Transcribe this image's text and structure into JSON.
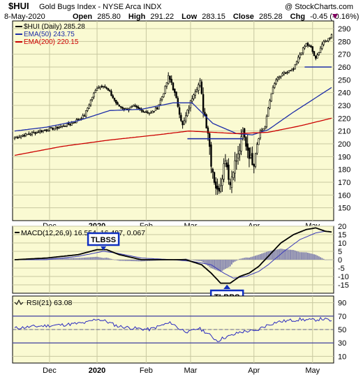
{
  "header": {
    "symbol": "$HUI",
    "name": "Gold Bugs Index - NYSE Arca  INDX",
    "watermark": "@ StockCharts.com",
    "date": "8-May-2020",
    "open_label": "Open",
    "open": "285.80",
    "high_label": "High",
    "high": "291.22",
    "low_label": "Low",
    "low": "283.15",
    "close_label": "Close",
    "close": "285.28",
    "chg_label": "Chg",
    "chg": "-0.45 (-0.16%)"
  },
  "colors": {
    "panel_bg": "#fafad2",
    "grid": "#c8c8a0",
    "price": "#000000",
    "ema50": "#1e2ea8",
    "ema200": "#cc0000",
    "macd": "#000000",
    "signal": "#3a3ab8",
    "histogram": "#8a8ab0",
    "rsi": "#2a2ac0",
    "annotation_box": "#1030c0"
  },
  "chart_data": [
    {
      "type": "candlestick",
      "legend": [
        {
          "label": "$HUI (Daily) 285.28",
          "color": "#000000"
        },
        {
          "label": "EMA(50) 243.75",
          "color": "#1e2ea8"
        },
        {
          "label": "EMA(200) 220.15",
          "color": "#cc0000"
        }
      ],
      "ylim": [
        140,
        296
      ],
      "y_ticks": [
        150,
        160,
        170,
        180,
        190,
        200,
        210,
        220,
        230,
        240,
        250,
        260,
        270,
        280,
        290
      ],
      "x_ticks": [
        "Dec",
        "2020",
        "Feb",
        "Mar",
        "Apr",
        "May"
      ],
      "x_tick_index": [
        22,
        52,
        83,
        111,
        151,
        188
      ],
      "support_lines": [
        {
          "from_index": 109,
          "to_index": 144,
          "value": 204
        },
        {
          "from_index": 183,
          "to_index": 200,
          "value": 260
        }
      ],
      "control_points": [
        [
          0,
          205
        ],
        [
          10,
          208
        ],
        [
          20,
          211
        ],
        [
          28,
          213
        ],
        [
          36,
          216
        ],
        [
          44,
          222
        ],
        [
          48,
          234
        ],
        [
          52,
          244
        ],
        [
          56,
          246
        ],
        [
          60,
          240
        ],
        [
          65,
          230
        ],
        [
          70,
          227
        ],
        [
          75,
          229
        ],
        [
          80,
          226
        ],
        [
          86,
          224
        ],
        [
          90,
          228
        ],
        [
          94,
          240
        ],
        [
          97,
          252
        ],
        [
          99,
          248
        ],
        [
          103,
          230
        ],
        [
          106,
          214
        ],
        [
          109,
          225
        ],
        [
          113,
          240
        ],
        [
          117,
          248
        ],
        [
          119,
          228
        ],
        [
          122,
          210
        ],
        [
          124,
          186
        ],
        [
          126,
          172
        ],
        [
          128,
          162
        ],
        [
          130,
          170
        ],
        [
          133,
          190
        ],
        [
          136,
          168
        ],
        [
          138,
          182
        ],
        [
          141,
          190
        ],
        [
          144,
          208
        ],
        [
          147,
          196
        ],
        [
          149,
          188
        ],
        [
          151,
          186
        ],
        [
          153,
          200
        ],
        [
          155,
          210
        ],
        [
          158,
          213
        ],
        [
          160,
          228
        ],
        [
          162,
          240
        ],
        [
          165,
          250
        ],
        [
          170,
          255
        ],
        [
          176,
          258
        ],
        [
          180,
          270
        ],
        [
          184,
          278
        ],
        [
          187,
          275
        ],
        [
          190,
          266
        ],
        [
          194,
          278
        ],
        [
          198,
          282
        ],
        [
          200,
          285
        ]
      ],
      "ema50_control_points": [
        [
          0,
          210
        ],
        [
          20,
          213
        ],
        [
          40,
          218
        ],
        [
          60,
          226
        ],
        [
          80,
          227
        ],
        [
          100,
          232
        ],
        [
          112,
          232
        ],
        [
          125,
          216
        ],
        [
          140,
          208
        ],
        [
          150,
          207
        ],
        [
          160,
          211
        ],
        [
          175,
          224
        ],
        [
          190,
          236
        ],
        [
          200,
          244
        ]
      ],
      "ema200_control_points": [
        [
          0,
          191
        ],
        [
          30,
          198
        ],
        [
          60,
          203
        ],
        [
          90,
          207
        ],
        [
          110,
          210
        ],
        [
          125,
          209
        ],
        [
          140,
          208
        ],
        [
          160,
          209
        ],
        [
          180,
          214
        ],
        [
          200,
          220
        ]
      ]
    },
    {
      "type": "line",
      "legend": [
        {
          "label": "MACD(12,26,9) 16.554, 16.487, 0.067",
          "color": "#000000"
        }
      ],
      "ylim": [
        -20,
        20
      ],
      "y_ticks": [
        -15,
        -10,
        -5,
        0,
        5,
        10,
        15,
        20
      ],
      "annotations": [
        {
          "text": "TLBSS",
          "index": 56,
          "value": 6
        },
        {
          "text": "TLBBS",
          "index": 134,
          "value": -14
        }
      ],
      "macd_control_points": [
        [
          0,
          0
        ],
        [
          20,
          1
        ],
        [
          40,
          3
        ],
        [
          52,
          6
        ],
        [
          58,
          6
        ],
        [
          66,
          3
        ],
        [
          80,
          0
        ],
        [
          95,
          0
        ],
        [
          108,
          0
        ],
        [
          118,
          -3
        ],
        [
          124,
          -8
        ],
        [
          130,
          -14
        ],
        [
          136,
          -14
        ],
        [
          142,
          -10
        ],
        [
          148,
          -8
        ],
        [
          154,
          -4
        ],
        [
          160,
          2
        ],
        [
          168,
          10
        ],
        [
          176,
          15
        ],
        [
          184,
          18
        ],
        [
          190,
          19
        ],
        [
          196,
          17
        ],
        [
          200,
          16.554
        ]
      ],
      "signal_control_points": [
        [
          0,
          0
        ],
        [
          20,
          0
        ],
        [
          40,
          2
        ],
        [
          56,
          5
        ],
        [
          64,
          4
        ],
        [
          80,
          1
        ],
        [
          100,
          0
        ],
        [
          112,
          -1
        ],
        [
          124,
          -3
        ],
        [
          132,
          -8
        ],
        [
          138,
          -11
        ],
        [
          146,
          -10
        ],
        [
          154,
          -7
        ],
        [
          160,
          -3
        ],
        [
          170,
          5
        ],
        [
          180,
          12
        ],
        [
          190,
          16
        ],
        [
          196,
          17
        ],
        [
          200,
          16.487
        ]
      ]
    },
    {
      "type": "line",
      "legend": [
        {
          "label": "RSI(21) 63.08",
          "color": "#000000"
        }
      ],
      "ylim": [
        0,
        100
      ],
      "y_ticks": [
        10,
        30,
        50,
        70,
        90
      ],
      "reference_lines": [
        70,
        50,
        30
      ],
      "rsi_control_points": [
        [
          0,
          52
        ],
        [
          15,
          55
        ],
        [
          30,
          57
        ],
        [
          45,
          60
        ],
        [
          52,
          66
        ],
        [
          58,
          62
        ],
        [
          65,
          55
        ],
        [
          75,
          52
        ],
        [
          85,
          50
        ],
        [
          95,
          58
        ],
        [
          99,
          60
        ],
        [
          104,
          51
        ],
        [
          110,
          46
        ],
        [
          116,
          52
        ],
        [
          120,
          47
        ],
        [
          124,
          40
        ],
        [
          128,
          33
        ],
        [
          132,
          38
        ],
        [
          137,
          41
        ],
        [
          142,
          46
        ],
        [
          148,
          48
        ],
        [
          152,
          47
        ],
        [
          156,
          53
        ],
        [
          160,
          57
        ],
        [
          165,
          61
        ],
        [
          172,
          63
        ],
        [
          180,
          65
        ],
        [
          188,
          64
        ],
        [
          194,
          66
        ],
        [
          200,
          63.08
        ]
      ]
    }
  ]
}
